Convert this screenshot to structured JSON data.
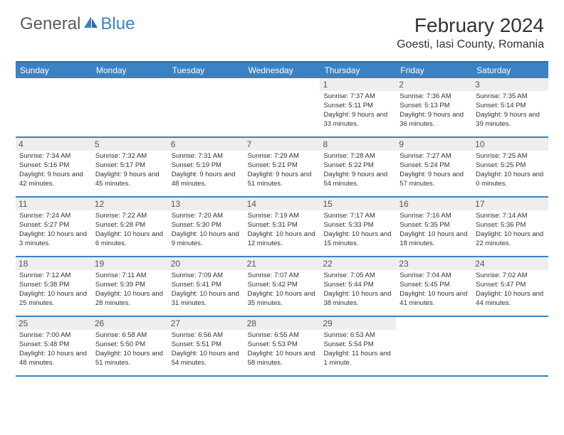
{
  "logo": {
    "part1": "General",
    "part2": "Blue"
  },
  "title": "February 2024",
  "location": "Goesti, Iasi County, Romania",
  "colors": {
    "header_bg": "#3b82c4",
    "header_border": "#2d6aa3",
    "row_divider": "#3b82c4",
    "daynum_bg": "#eeeeee",
    "text": "#333333",
    "logo_gray": "#5a5a5a",
    "logo_blue": "#3b82c4"
  },
  "day_names": [
    "Sunday",
    "Monday",
    "Tuesday",
    "Wednesday",
    "Thursday",
    "Friday",
    "Saturday"
  ],
  "weeks": [
    [
      {
        "n": "",
        "empty": true
      },
      {
        "n": "",
        "empty": true
      },
      {
        "n": "",
        "empty": true
      },
      {
        "n": "",
        "empty": true
      },
      {
        "n": "1",
        "sunrise": "Sunrise: 7:37 AM",
        "sunset": "Sunset: 5:11 PM",
        "daylight": "Daylight: 9 hours and 33 minutes."
      },
      {
        "n": "2",
        "sunrise": "Sunrise: 7:36 AM",
        "sunset": "Sunset: 5:13 PM",
        "daylight": "Daylight: 9 hours and 36 minutes."
      },
      {
        "n": "3",
        "sunrise": "Sunrise: 7:35 AM",
        "sunset": "Sunset: 5:14 PM",
        "daylight": "Daylight: 9 hours and 39 minutes."
      }
    ],
    [
      {
        "n": "4",
        "sunrise": "Sunrise: 7:34 AM",
        "sunset": "Sunset: 5:16 PM",
        "daylight": "Daylight: 9 hours and 42 minutes."
      },
      {
        "n": "5",
        "sunrise": "Sunrise: 7:32 AM",
        "sunset": "Sunset: 5:17 PM",
        "daylight": "Daylight: 9 hours and 45 minutes."
      },
      {
        "n": "6",
        "sunrise": "Sunrise: 7:31 AM",
        "sunset": "Sunset: 5:19 PM",
        "daylight": "Daylight: 9 hours and 48 minutes."
      },
      {
        "n": "7",
        "sunrise": "Sunrise: 7:29 AM",
        "sunset": "Sunset: 5:21 PM",
        "daylight": "Daylight: 9 hours and 51 minutes."
      },
      {
        "n": "8",
        "sunrise": "Sunrise: 7:28 AM",
        "sunset": "Sunset: 5:22 PM",
        "daylight": "Daylight: 9 hours and 54 minutes."
      },
      {
        "n": "9",
        "sunrise": "Sunrise: 7:27 AM",
        "sunset": "Sunset: 5:24 PM",
        "daylight": "Daylight: 9 hours and 57 minutes."
      },
      {
        "n": "10",
        "sunrise": "Sunrise: 7:25 AM",
        "sunset": "Sunset: 5:25 PM",
        "daylight": "Daylight: 10 hours and 0 minutes."
      }
    ],
    [
      {
        "n": "11",
        "sunrise": "Sunrise: 7:24 AM",
        "sunset": "Sunset: 5:27 PM",
        "daylight": "Daylight: 10 hours and 3 minutes."
      },
      {
        "n": "12",
        "sunrise": "Sunrise: 7:22 AM",
        "sunset": "Sunset: 5:28 PM",
        "daylight": "Daylight: 10 hours and 6 minutes."
      },
      {
        "n": "13",
        "sunrise": "Sunrise: 7:20 AM",
        "sunset": "Sunset: 5:30 PM",
        "daylight": "Daylight: 10 hours and 9 minutes."
      },
      {
        "n": "14",
        "sunrise": "Sunrise: 7:19 AM",
        "sunset": "Sunset: 5:31 PM",
        "daylight": "Daylight: 10 hours and 12 minutes."
      },
      {
        "n": "15",
        "sunrise": "Sunrise: 7:17 AM",
        "sunset": "Sunset: 5:33 PM",
        "daylight": "Daylight: 10 hours and 15 minutes."
      },
      {
        "n": "16",
        "sunrise": "Sunrise: 7:16 AM",
        "sunset": "Sunset: 5:35 PM",
        "daylight": "Daylight: 10 hours and 18 minutes."
      },
      {
        "n": "17",
        "sunrise": "Sunrise: 7:14 AM",
        "sunset": "Sunset: 5:36 PM",
        "daylight": "Daylight: 10 hours and 22 minutes."
      }
    ],
    [
      {
        "n": "18",
        "sunrise": "Sunrise: 7:12 AM",
        "sunset": "Sunset: 5:38 PM",
        "daylight": "Daylight: 10 hours and 25 minutes."
      },
      {
        "n": "19",
        "sunrise": "Sunrise: 7:11 AM",
        "sunset": "Sunset: 5:39 PM",
        "daylight": "Daylight: 10 hours and 28 minutes."
      },
      {
        "n": "20",
        "sunrise": "Sunrise: 7:09 AM",
        "sunset": "Sunset: 5:41 PM",
        "daylight": "Daylight: 10 hours and 31 minutes."
      },
      {
        "n": "21",
        "sunrise": "Sunrise: 7:07 AM",
        "sunset": "Sunset: 5:42 PM",
        "daylight": "Daylight: 10 hours and 35 minutes."
      },
      {
        "n": "22",
        "sunrise": "Sunrise: 7:05 AM",
        "sunset": "Sunset: 5:44 PM",
        "daylight": "Daylight: 10 hours and 38 minutes."
      },
      {
        "n": "23",
        "sunrise": "Sunrise: 7:04 AM",
        "sunset": "Sunset: 5:45 PM",
        "daylight": "Daylight: 10 hours and 41 minutes."
      },
      {
        "n": "24",
        "sunrise": "Sunrise: 7:02 AM",
        "sunset": "Sunset: 5:47 PM",
        "daylight": "Daylight: 10 hours and 44 minutes."
      }
    ],
    [
      {
        "n": "25",
        "sunrise": "Sunrise: 7:00 AM",
        "sunset": "Sunset: 5:48 PM",
        "daylight": "Daylight: 10 hours and 48 minutes."
      },
      {
        "n": "26",
        "sunrise": "Sunrise: 6:58 AM",
        "sunset": "Sunset: 5:50 PM",
        "daylight": "Daylight: 10 hours and 51 minutes."
      },
      {
        "n": "27",
        "sunrise": "Sunrise: 6:56 AM",
        "sunset": "Sunset: 5:51 PM",
        "daylight": "Daylight: 10 hours and 54 minutes."
      },
      {
        "n": "28",
        "sunrise": "Sunrise: 6:55 AM",
        "sunset": "Sunset: 5:53 PM",
        "daylight": "Daylight: 10 hours and 58 minutes."
      },
      {
        "n": "29",
        "sunrise": "Sunrise: 6:53 AM",
        "sunset": "Sunset: 5:54 PM",
        "daylight": "Daylight: 11 hours and 1 minute."
      },
      {
        "n": "",
        "empty": true
      },
      {
        "n": "",
        "empty": true
      }
    ]
  ]
}
